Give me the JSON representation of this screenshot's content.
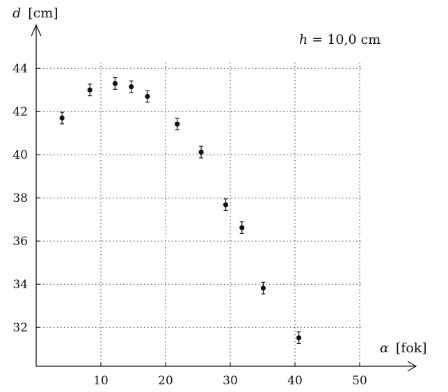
{
  "chart_data": {
    "type": "scatter",
    "title": "",
    "annotation": {
      "symbol": "h",
      "text": " = 10,0 cm"
    },
    "xlabel": {
      "symbol": "α",
      "unit": " [fok]"
    },
    "ylabel": {
      "symbol": "d",
      "unit": " [cm]"
    },
    "xlim": [
      0,
      55
    ],
    "ylim": [
      30.2,
      46
    ],
    "grid": true,
    "grid_style": "dotted",
    "x_ticks": [
      10,
      20,
      30,
      40,
      50
    ],
    "y_ticks": [
      32,
      34,
      36,
      38,
      40,
      42,
      44
    ],
    "x_tick_labels": [
      "10",
      "20",
      "30",
      "40",
      "50"
    ],
    "y_tick_labels": [
      "32",
      "34",
      "36",
      "38",
      "40",
      "42",
      "44"
    ],
    "error": 0.27,
    "points": [
      {
        "x": 4.0,
        "y": 41.7
      },
      {
        "x": 8.3,
        "y": 43.0
      },
      {
        "x": 12.2,
        "y": 43.3
      },
      {
        "x": 14.7,
        "y": 43.15
      },
      {
        "x": 17.2,
        "y": 42.7
      },
      {
        "x": 21.8,
        "y": 41.42
      },
      {
        "x": 25.5,
        "y": 40.12
      },
      {
        "x": 29.3,
        "y": 37.68
      },
      {
        "x": 31.8,
        "y": 36.62
      },
      {
        "x": 35.1,
        "y": 33.82
      },
      {
        "x": 40.6,
        "y": 31.52
      }
    ],
    "marker_color": "#111111"
  }
}
